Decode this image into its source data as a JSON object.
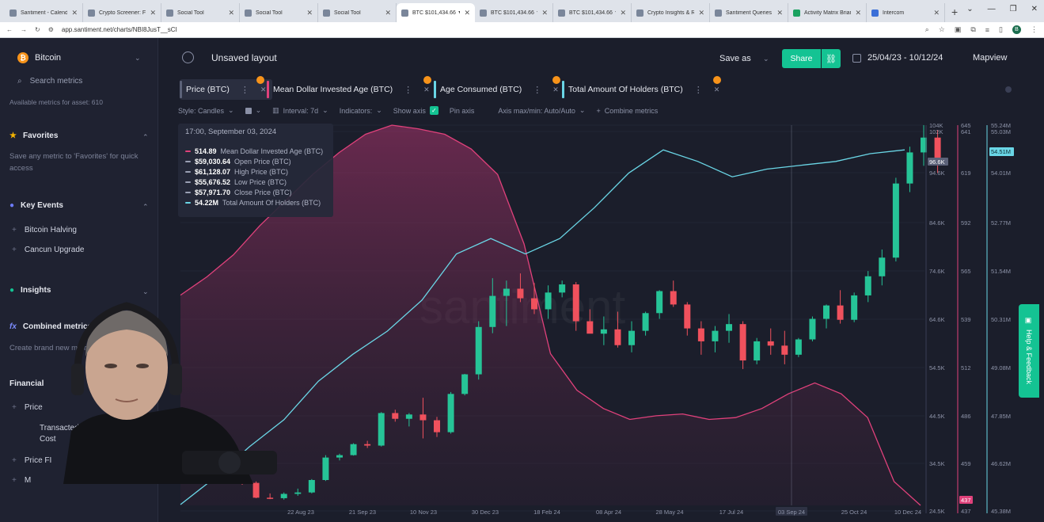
{
  "browser": {
    "tabs": [
      {
        "title": "Santiment - Calendar",
        "icon": "santiment-icon",
        "active": false
      },
      {
        "title": "Crypto Screener: Filter",
        "icon": "santiment-icon",
        "active": false
      },
      {
        "title": "Social Tool",
        "icon": "santiment-icon",
        "active": false
      },
      {
        "title": "Social Tool",
        "icon": "santiment-icon",
        "active": false
      },
      {
        "title": "Social Tool",
        "icon": "santiment-icon",
        "active": false
      },
      {
        "title": "BTC $101,434.66 ▼ -0",
        "icon": "santiment-icon",
        "active": true
      },
      {
        "title": "BTC $101,434.66 ▼ -0",
        "icon": "santiment-icon",
        "active": false
      },
      {
        "title": "BTC $101,434.66 ▼ -0",
        "icon": "santiment-icon",
        "active": false
      },
      {
        "title": "Crypto Insights & Rese",
        "icon": "santiment-icon",
        "active": false
      },
      {
        "title": "Santiment Queries",
        "icon": "santiment-icon",
        "active": false
      },
      {
        "title": "Activity Matrix Brian",
        "icon": "sheets-icon",
        "active": false
      },
      {
        "title": "Intercom",
        "icon": "intercom-icon",
        "active": false
      }
    ],
    "url": "app.santiment.net/charts/NBI8JusT__sCl"
  },
  "sidebar": {
    "asset": "Bitcoin",
    "search_placeholder": "Search metrics",
    "available": "Available metrics for asset: 610",
    "favorites": {
      "title": "Favorites",
      "desc": "Save any metric to 'Favorites' for quick access"
    },
    "key_events": {
      "title": "Key Events",
      "items": [
        "Bitcoin Halving",
        "Cancun Upgrade"
      ]
    },
    "insights": {
      "title": "Insights"
    },
    "combined": {
      "title": "Combined metrics",
      "desc": "Create brand new metrics"
    },
    "financial": {
      "title": "Financial",
      "items": [
        "Price",
        "Transacted Cost",
        "Price FI",
        "M"
      ]
    }
  },
  "header": {
    "layout_title": "Unsaved layout",
    "save_as": "Save as",
    "share": "Share",
    "date_range": "25/04/23 - 10/12/24",
    "mapview": "Mapview"
  },
  "metrics": [
    {
      "label": "Price (BTC)",
      "color": "#5b6178"
    },
    {
      "label": "Mean Dollar Invested Age (BTC)",
      "color": "#e0417b"
    },
    {
      "label": "Age Consumed (BTC)",
      "color": "#6ad6e6"
    },
    {
      "label": "Total Amount Of Holders (BTC)",
      "color": "#6ad6e6"
    }
  ],
  "options": {
    "style": "Style: Candles",
    "interval": "Interval: 7d",
    "indicators": "Indicators:",
    "show_axis": "Show axis",
    "pin_axis": "Pin axis",
    "axis_max": "Axis max/min: Auto/Auto",
    "combine": "Combine metrics"
  },
  "tooltip": {
    "date": "17:00, September 03, 2024",
    "rows": [
      {
        "value": "514.89",
        "label": "Mean Dollar Invested Age (BTC)",
        "color": "#e0417b"
      },
      {
        "value": "$59,030.64",
        "label": "Open Price (BTC)",
        "color": "#9aa0b4"
      },
      {
        "value": "$61,128.07",
        "label": "High Price (BTC)",
        "color": "#9aa0b4"
      },
      {
        "value": "$55,676.52",
        "label": "Low Price (BTC)",
        "color": "#9aa0b4"
      },
      {
        "value": "$57,971.70",
        "label": "Close Price (BTC)",
        "color": "#9aa0b4"
      },
      {
        "value": "54.22M",
        "label": "Total Amount Of Holders (BTC)",
        "color": "#6ad6e6"
      }
    ]
  },
  "chart_data": {
    "type": "line",
    "watermark": "santiment",
    "x_ticks": [
      "22 Aug 23",
      "21 Sep 23",
      "10 Nov 23",
      "30 Dec 23",
      "18 Feb 24",
      "08 Apr 24",
      "28 May 24",
      "17 Jul 24",
      "03 Sep 24",
      "25 Oct 24",
      "10 Dec 24"
    ],
    "axes": {
      "price": {
        "ticks": [
          "104K",
          "102K",
          "94.6K",
          "84.6K",
          "74.6K",
          "64.6K",
          "54.5K",
          "44.5K",
          "34.5K",
          "24.5K"
        ],
        "current": "96.6K"
      },
      "mdia": {
        "ticks": [
          "645",
          "641",
          "619",
          "592",
          "565",
          "539",
          "512",
          "486",
          "459",
          "437"
        ]
      },
      "holders": {
        "ticks": [
          "55.24M",
          "55.03M",
          "54.01M",
          "52.77M",
          "51.54M",
          "50.31M",
          "49.08M",
          "47.85M",
          "46.62M",
          "45.38M"
        ],
        "current": "54.51M"
      }
    },
    "series": [
      {
        "name": "Mean Dollar Invested Age (BTC)",
        "color": "#e0417b",
        "values": [
          552,
          562,
          574,
          590,
          604,
          618,
          630,
          640,
          645,
          643,
          640,
          632,
          618,
          580,
          520,
          500,
          490,
          484,
          486,
          487,
          484,
          485,
          490,
          498,
          504,
          498,
          485,
          450,
          437
        ]
      },
      {
        "name": "Total Amount Of Holders (BTC)",
        "color": "#6ad6e6",
        "values": [
          45.4,
          46.1,
          46.9,
          47.6,
          48.6,
          49.3,
          49.9,
          50.7,
          51.9,
          52.3,
          51.9,
          52.3,
          53.1,
          54.0,
          54.6,
          54.3,
          53.9,
          54.1,
          54.2,
          54.3,
          54.5,
          54.6
        ]
      },
      {
        "name": "Price (BTC)",
        "type": "candles",
        "ohlc": [
          [
            29.4,
            29.8,
            28.8,
            29.2
          ],
          [
            29.2,
            29.5,
            26.0,
            26.1
          ],
          [
            26.1,
            27.0,
            25.8,
            26.0
          ],
          [
            26.0,
            27.2,
            25.7,
            26.9
          ],
          [
            26.9,
            28.0,
            26.5,
            27.2
          ],
          [
            27.2,
            30.0,
            27.0,
            29.8
          ],
          [
            29.8,
            35.0,
            29.6,
            34.5
          ],
          [
            34.5,
            35.3,
            33.9,
            35.0
          ],
          [
            35.0,
            37.5,
            34.9,
            37.3
          ],
          [
            37.3,
            38.0,
            36.5,
            37.0
          ],
          [
            37.0,
            44.0,
            36.8,
            43.8
          ],
          [
            43.8,
            44.5,
            42.0,
            42.6
          ],
          [
            42.6,
            43.8,
            41.0,
            43.5
          ],
          [
            43.5,
            47.0,
            38.5,
            42.3
          ],
          [
            42.3,
            43.0,
            38.8,
            39.8
          ],
          [
            39.8,
            48.2,
            39.5,
            47.8
          ],
          [
            47.8,
            52.0,
            47.5,
            51.9
          ],
          [
            51.9,
            63.0,
            50.8,
            61.8
          ],
          [
            61.8,
            72.0,
            60.5,
            68.3
          ],
          [
            68.3,
            71.5,
            62.0,
            69.8
          ],
          [
            69.8,
            73.0,
            67.0,
            67.8
          ],
          [
            67.8,
            71.0,
            64.5,
            65.5
          ],
          [
            65.5,
            70.5,
            63.5,
            69.0
          ],
          [
            69.0,
            71.5,
            68.0,
            70.7
          ],
          [
            70.7,
            71.2,
            61.0,
            63.0
          ],
          [
            63.0,
            65.5,
            60.5,
            60.4
          ],
          [
            60.4,
            64.0,
            58.0,
            61.3
          ],
          [
            61.3,
            65.0,
            57.5,
            58.0
          ],
          [
            58.0,
            63.0,
            56.5,
            61.0
          ],
          [
            61.0,
            65.0,
            60.0,
            64.7
          ],
          [
            64.7,
            69.5,
            63.5,
            69.3
          ],
          [
            69.3,
            71.5,
            66.0,
            66.5
          ],
          [
            66.5,
            67.0,
            60.0,
            61.5
          ],
          [
            61.5,
            63.0,
            56.0,
            58.8
          ],
          [
            58.8,
            62.0,
            56.5,
            61.0
          ],
          [
            61.0,
            64.5,
            58.5,
            62.4
          ],
          [
            62.4,
            63.0,
            53.0,
            54.8
          ],
          [
            54.8,
            59.5,
            54.0,
            58.8
          ],
          [
            58.8,
            61.5,
            56.0,
            57.9
          ],
          [
            57.9,
            61.0,
            54.0,
            56.0
          ],
          [
            56.0,
            59.5,
            55.5,
            59.2
          ],
          [
            59.2,
            64.0,
            58.8,
            63.5
          ],
          [
            63.5,
            66.5,
            61.5,
            66.3
          ],
          [
            66.3,
            69.5,
            62.5,
            63.3
          ],
          [
            63.3,
            69.0,
            62.8,
            68.4
          ],
          [
            68.4,
            73.5,
            67.0,
            72.4
          ],
          [
            72.4,
            78.0,
            70.5,
            76.3
          ],
          [
            76.3,
            93.0,
            75.5,
            91.8
          ],
          [
            91.8,
            99.5,
            90.0,
            98.3
          ],
          [
            98.3,
            104.0,
            95.5,
            101.4
          ],
          [
            101.4,
            103.0,
            94.0,
            96.6
          ]
        ]
      }
    ]
  }
}
